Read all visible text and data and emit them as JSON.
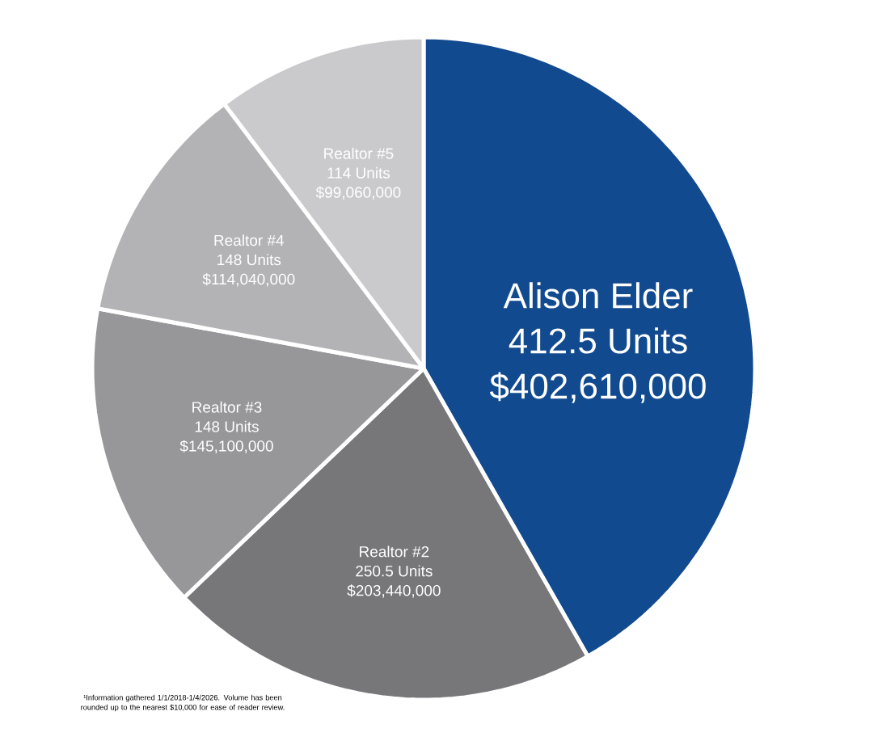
{
  "chart_data": {
    "type": "pie",
    "categories": [
      "Alison Elder",
      "Realtor #2",
      "Realtor #3",
      "Realtor #4",
      "Realtor #5"
    ],
    "values": [
      402610000,
      203440000,
      145100000,
      114040000,
      99060000
    ],
    "colors": [
      "#124a8f",
      "#77777a",
      "#97979a",
      "#b3b3b5",
      "#cacacc"
    ],
    "value_labels": [
      "$402,610,000",
      "$203,440,000",
      "$145,100,000",
      "$114,040,000",
      "$99,060,000"
    ],
    "annotations": [
      "412.5 Units",
      "250.5 Units",
      "148 Units",
      "148 Units",
      "114 Units",
      "¹Information gathered 1/1/2018-1/4/2026. Volume has been rounded up to the nearest $10,000 for ease of reader review."
    ]
  }
}
